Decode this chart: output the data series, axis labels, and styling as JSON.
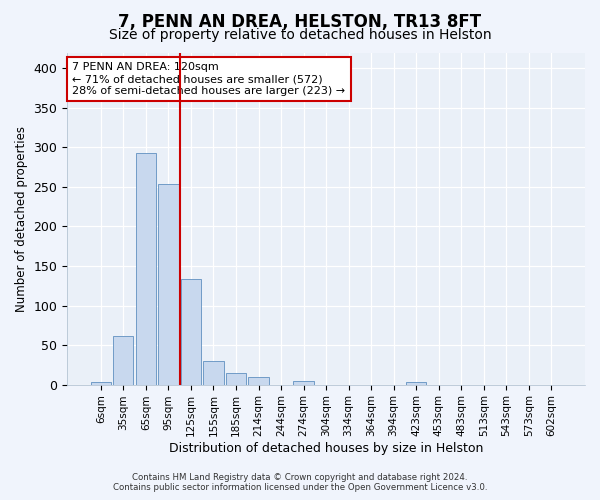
{
  "title": "7, PENN AN DREA, HELSTON, TR13 8FT",
  "subtitle": "Size of property relative to detached houses in Helston",
  "xlabel": "Distribution of detached houses by size in Helston",
  "ylabel": "Number of detached properties",
  "footer_line1": "Contains HM Land Registry data © Crown copyright and database right 2024.",
  "footer_line2": "Contains public sector information licensed under the Open Government Licence v3.0.",
  "bar_labels": [
    "6sqm",
    "35sqm",
    "65sqm",
    "95sqm",
    "125sqm",
    "155sqm",
    "185sqm",
    "214sqm",
    "244sqm",
    "274sqm",
    "304sqm",
    "334sqm",
    "364sqm",
    "394sqm",
    "423sqm",
    "453sqm",
    "483sqm",
    "513sqm",
    "543sqm",
    "573sqm",
    "602sqm"
  ],
  "bar_values": [
    3,
    62,
    293,
    254,
    133,
    30,
    15,
    10,
    0,
    5,
    0,
    0,
    0,
    0,
    3,
    0,
    0,
    0,
    0,
    0,
    0
  ],
  "bar_color": "#c8d8ee",
  "bar_edge_color": "#6090c0",
  "vline_x": 4,
  "vline_color": "#cc0000",
  "ylim": [
    0,
    420
  ],
  "yticks": [
    0,
    50,
    100,
    150,
    200,
    250,
    300,
    350,
    400
  ],
  "annotation_text": "7 PENN AN DREA: 120sqm\n← 71% of detached houses are smaller (572)\n28% of semi-detached houses are larger (223) →",
  "annotation_box_color": "#ffffff",
  "annotation_box_edge": "#cc0000",
  "background_color": "#f0f4fc",
  "plot_bg_color": "#eaf0f8",
  "title_fontsize": 12,
  "subtitle_fontsize": 10,
  "grid_color": "#d0d8e8",
  "tick_label_fontsize": 7.5
}
